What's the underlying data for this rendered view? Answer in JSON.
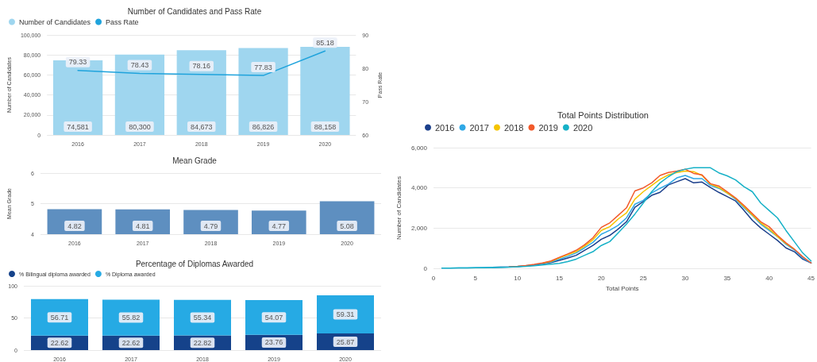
{
  "chart_data": [
    {
      "type": "bar",
      "title": "Number of Candidates and Pass Rate",
      "ylabel": "Number of Candidates",
      "y2label": "Pass Rate",
      "categories": [
        "2016",
        "2017",
        "2018",
        "2019",
        "2020"
      ],
      "series": [
        {
          "name": "Number of Candidates",
          "color": "#9fd6ef",
          "values": [
            74581,
            80300,
            84673,
            86826,
            88158
          ],
          "value_labels": [
            "74,581",
            "80,300",
            "84,673",
            "86,826",
            "88,158"
          ]
        },
        {
          "name": "Pass Rate",
          "type": "line",
          "axis": "y2",
          "color": "#1fa3dc",
          "values": [
            79.33,
            78.43,
            78.16,
            77.83,
            85.18
          ]
        }
      ],
      "ylim": [
        0,
        100000
      ],
      "yticks": [
        0,
        {
          "value": 20000,
          "label": "20,000"
        },
        {
          "value": 40000,
          "label": "40,000"
        },
        {
          "value": 60000,
          "label": "60,000"
        },
        {
          "value": 80000,
          "label": "80,000"
        },
        {
          "value": 100000,
          "label": "100,000"
        }
      ],
      "y2lim": [
        60,
        90
      ],
      "y2ticks": [
        60,
        70,
        80,
        90
      ],
      "grid": "y",
      "legend": "top left",
      "marker": "none",
      "line_style": "solid",
      "data_labels": true
    },
    {
      "type": "bar",
      "title": "Mean Grade",
      "ylabel": "Mean Grade",
      "categories": [
        "2016",
        "2017",
        "2018",
        "2019",
        "2020"
      ],
      "series": [
        {
          "color": "#5e8fc0",
          "values": [
            4.82,
            4.81,
            4.79,
            4.77,
            5.08
          ]
        }
      ],
      "ylim": [
        4,
        6
      ],
      "yticks": [
        4,
        5,
        6
      ],
      "grid": "y",
      "data_labels": true
    },
    {
      "type": "bar",
      "title": "Percentage of Diplomas Awarded",
      "categories": [
        "2016",
        "2017",
        "2018",
        "2019",
        "2020"
      ],
      "stacked": true,
      "series": [
        {
          "name": "% Bilingual diploma awarded",
          "color": "#15428a",
          "values": [
            22.62,
            22.62,
            22.82,
            23.76,
            25.87
          ]
        },
        {
          "name": "% Diploma awarded",
          "color": "#26aae4",
          "values": [
            56.71,
            55.82,
            55.34,
            54.07,
            59.31
          ]
        }
      ],
      "ylim": [
        0,
        100
      ],
      "yticks": [
        0,
        50,
        100
      ],
      "grid": "y",
      "legend": "top left",
      "data_labels": true
    },
    {
      "type": "line",
      "title": "Total Points Distribution",
      "xlabel": "Total Points",
      "ylabel": "Number of Candidates",
      "x": [
        1,
        2,
        3,
        4,
        5,
        6,
        7,
        8,
        9,
        10,
        11,
        12,
        13,
        14,
        15,
        16,
        17,
        18,
        19,
        20,
        21,
        22,
        23,
        24,
        25,
        26,
        27,
        28,
        29,
        30,
        31,
        32,
        33,
        34,
        35,
        36,
        37,
        38,
        39,
        40,
        41,
        42,
        43,
        44,
        45
      ],
      "series": [
        {
          "name": "2016",
          "color": "#1b3f8b",
          "values": [
            null,
            null,
            null,
            null,
            null,
            null,
            50,
            60,
            70,
            90,
            120,
            160,
            220,
            290,
            400,
            520,
            650,
            900,
            1140,
            1450,
            1640,
            1950,
            2320,
            3040,
            3320,
            3630,
            3780,
            4150,
            4310,
            4460,
            4250,
            4290,
            4020,
            3780,
            3570,
            3350,
            2880,
            2390,
            2010,
            1700,
            1390,
            1020,
            830,
            460,
            270
          ]
        },
        {
          "name": "2017",
          "color": "#2fa8e6",
          "values": [
            10,
            10,
            20,
            20,
            30,
            40,
            50,
            60,
            70,
            90,
            130,
            180,
            240,
            320,
            460,
            600,
            770,
            1020,
            1290,
            1700,
            1890,
            2140,
            2510,
            3190,
            3380,
            3750,
            3980,
            4190,
            4500,
            4620,
            4460,
            4460,
            4120,
            3980,
            3750,
            3440,
            3010,
            2630,
            2200,
            1890,
            1580,
            1200,
            920,
            520,
            270
          ]
        },
        {
          "name": "2018",
          "color": "#f5c400",
          "values": [
            null,
            null,
            null,
            null,
            null,
            null,
            null,
            null,
            null,
            null,
            null,
            null,
            260,
            350,
            520,
            680,
            830,
            1100,
            1420,
            1890,
            2070,
            2450,
            2760,
            3440,
            3810,
            4120,
            4430,
            4650,
            4770,
            4840,
            4810,
            4620,
            4190,
            4020,
            3750,
            3480,
            3070,
            2660,
            2260,
            1950,
            1580,
            1240,
            960,
            null,
            null
          ]
        },
        {
          "name": "2019",
          "color": "#f25a2b",
          "values": [
            null,
            null,
            null,
            null,
            null,
            null,
            null,
            null,
            70,
            100,
            140,
            200,
            270,
            370,
            550,
            720,
            900,
            1170,
            1520,
            2040,
            2260,
            2630,
            3010,
            3850,
            4000,
            4250,
            4620,
            4770,
            4840,
            4930,
            4720,
            4650,
            4210,
            4100,
            3810,
            3500,
            3130,
            2720,
            2320,
            2070,
            1640,
            1270,
            960,
            580,
            270
          ]
        },
        {
          "name": "2020",
          "color": "#16b1c7",
          "values": [
            10,
            10,
            20,
            20,
            30,
            30,
            40,
            50,
            60,
            80,
            100,
            130,
            170,
            210,
            250,
            340,
            460,
            650,
            830,
            1140,
            1330,
            1760,
            2200,
            2700,
            3250,
            3810,
            4250,
            4560,
            4810,
            4930,
            5000,
            5000,
            5000,
            4750,
            4600,
            4400,
            4060,
            3810,
            3250,
            2880,
            2510,
            1890,
            1330,
            770,
            370
          ]
        }
      ],
      "xlim": [
        0,
        45
      ],
      "xticks": [
        0,
        5,
        10,
        15,
        20,
        25,
        30,
        35,
        40,
        45
      ],
      "ylim": [
        0,
        6000
      ],
      "yticks": [
        0,
        {
          "value": 2000,
          "label": "2,000"
        },
        {
          "value": 4000,
          "label": "4,000"
        },
        {
          "value": 6000,
          "label": "6,000"
        }
      ],
      "grid": "y",
      "legend": "top left",
      "marker": "none",
      "line_style": "solid"
    }
  ]
}
